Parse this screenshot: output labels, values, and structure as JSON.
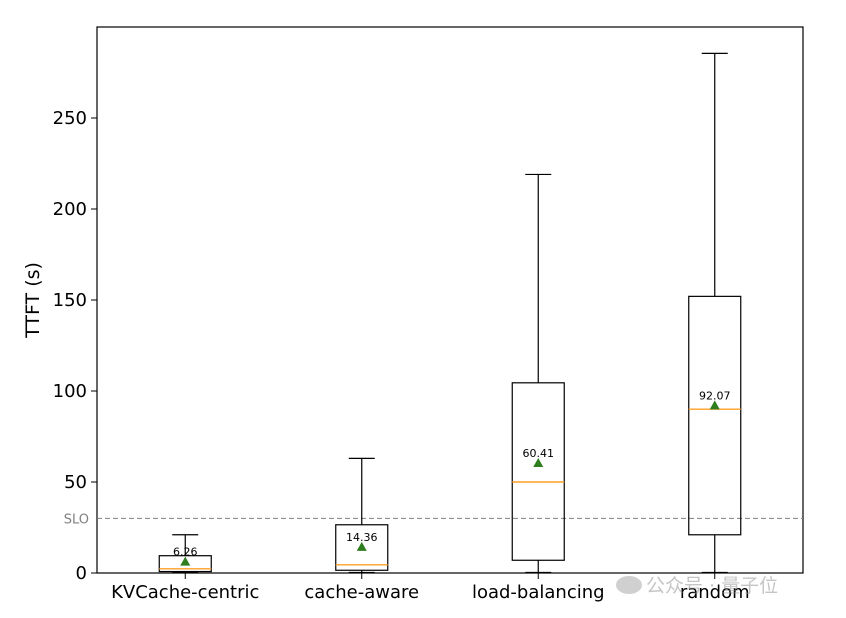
{
  "chart_data": {
    "type": "boxplot",
    "ylabel": "TTFT (s)",
    "xlabel": "",
    "ylim": [
      0,
      300
    ],
    "yticks": [
      0,
      50,
      100,
      150,
      200,
      250
    ],
    "grid": false,
    "categories": [
      "KVCache-centric",
      "cache-aware",
      "load-balancing",
      "random"
    ],
    "boxes": [
      {
        "whisker_low": 0.3,
        "q1": 0.8,
        "median": 2.3,
        "q3": 9.5,
        "whisker_high": 21,
        "mean": 6.26,
        "mean_label": "6.26"
      },
      {
        "whisker_low": 0.3,
        "q1": 1.5,
        "median": 4.5,
        "q3": 26.5,
        "whisker_high": 63,
        "mean": 14.36,
        "mean_label": "14.36"
      },
      {
        "whisker_low": 0.3,
        "q1": 7.0,
        "median": 50.0,
        "q3": 104.5,
        "whisker_high": 219,
        "mean": 60.41,
        "mean_label": "60.41"
      },
      {
        "whisker_low": 0.3,
        "q1": 21.0,
        "median": 90.0,
        "q3": 152.0,
        "whisker_high": 285.5,
        "mean": 92.07,
        "mean_label": "92.07"
      }
    ],
    "reference_line": {
      "label": "SLO",
      "value": 30,
      "style": "dashed",
      "color": "#808080"
    },
    "colors": {
      "box": "#000000",
      "median": "#ff9f29",
      "mean_marker": "#2e7d1e"
    }
  },
  "watermark": {
    "icon": "wechat-icon",
    "text": "公众号 · 量子位"
  }
}
